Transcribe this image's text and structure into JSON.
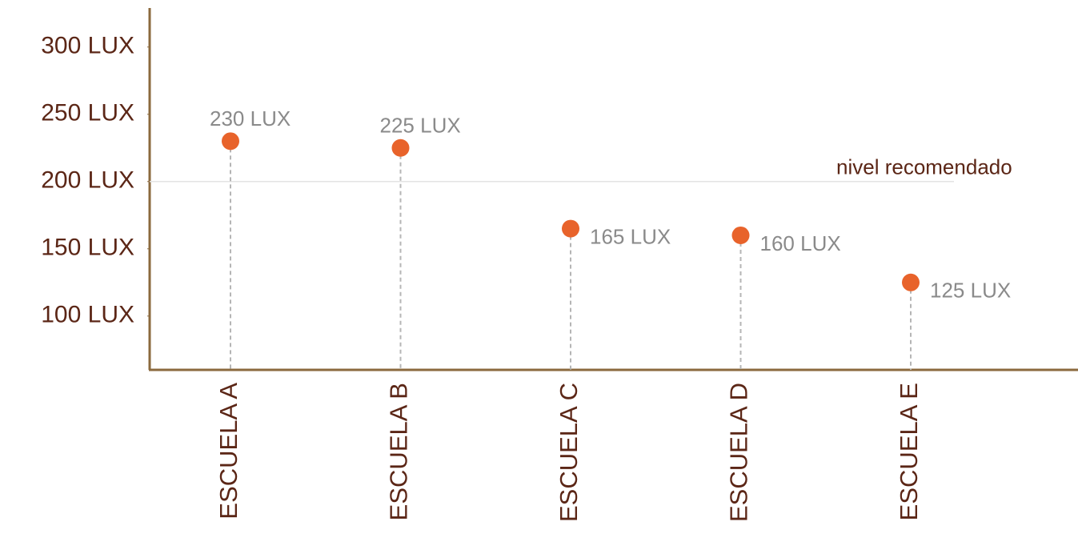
{
  "chart_data": {
    "type": "lollipop",
    "categories": [
      "ESCUELA A",
      "ESCUELA B",
      "ESCUELA C",
      "ESCUELA D",
      "ESCUELA E"
    ],
    "values": [
      230,
      225,
      165,
      160,
      125
    ],
    "value_labels": [
      "230 LUX",
      "225 LUX",
      "165 LUX",
      "160 LUX",
      "125 LUX"
    ],
    "color": "#e8632b",
    "ylim": [
      60,
      329
    ],
    "yticks": [
      {
        "value": 100,
        "label": "100 LUX"
      },
      {
        "value": 150,
        "label": "150 LUX"
      },
      {
        "value": 200,
        "label": "200 LUX"
      },
      {
        "value": 250,
        "label": "250 LUX"
      },
      {
        "value": 300,
        "label": "300 LUX"
      }
    ],
    "reference_line": {
      "value": 200,
      "label": "nivel recomendado"
    }
  }
}
